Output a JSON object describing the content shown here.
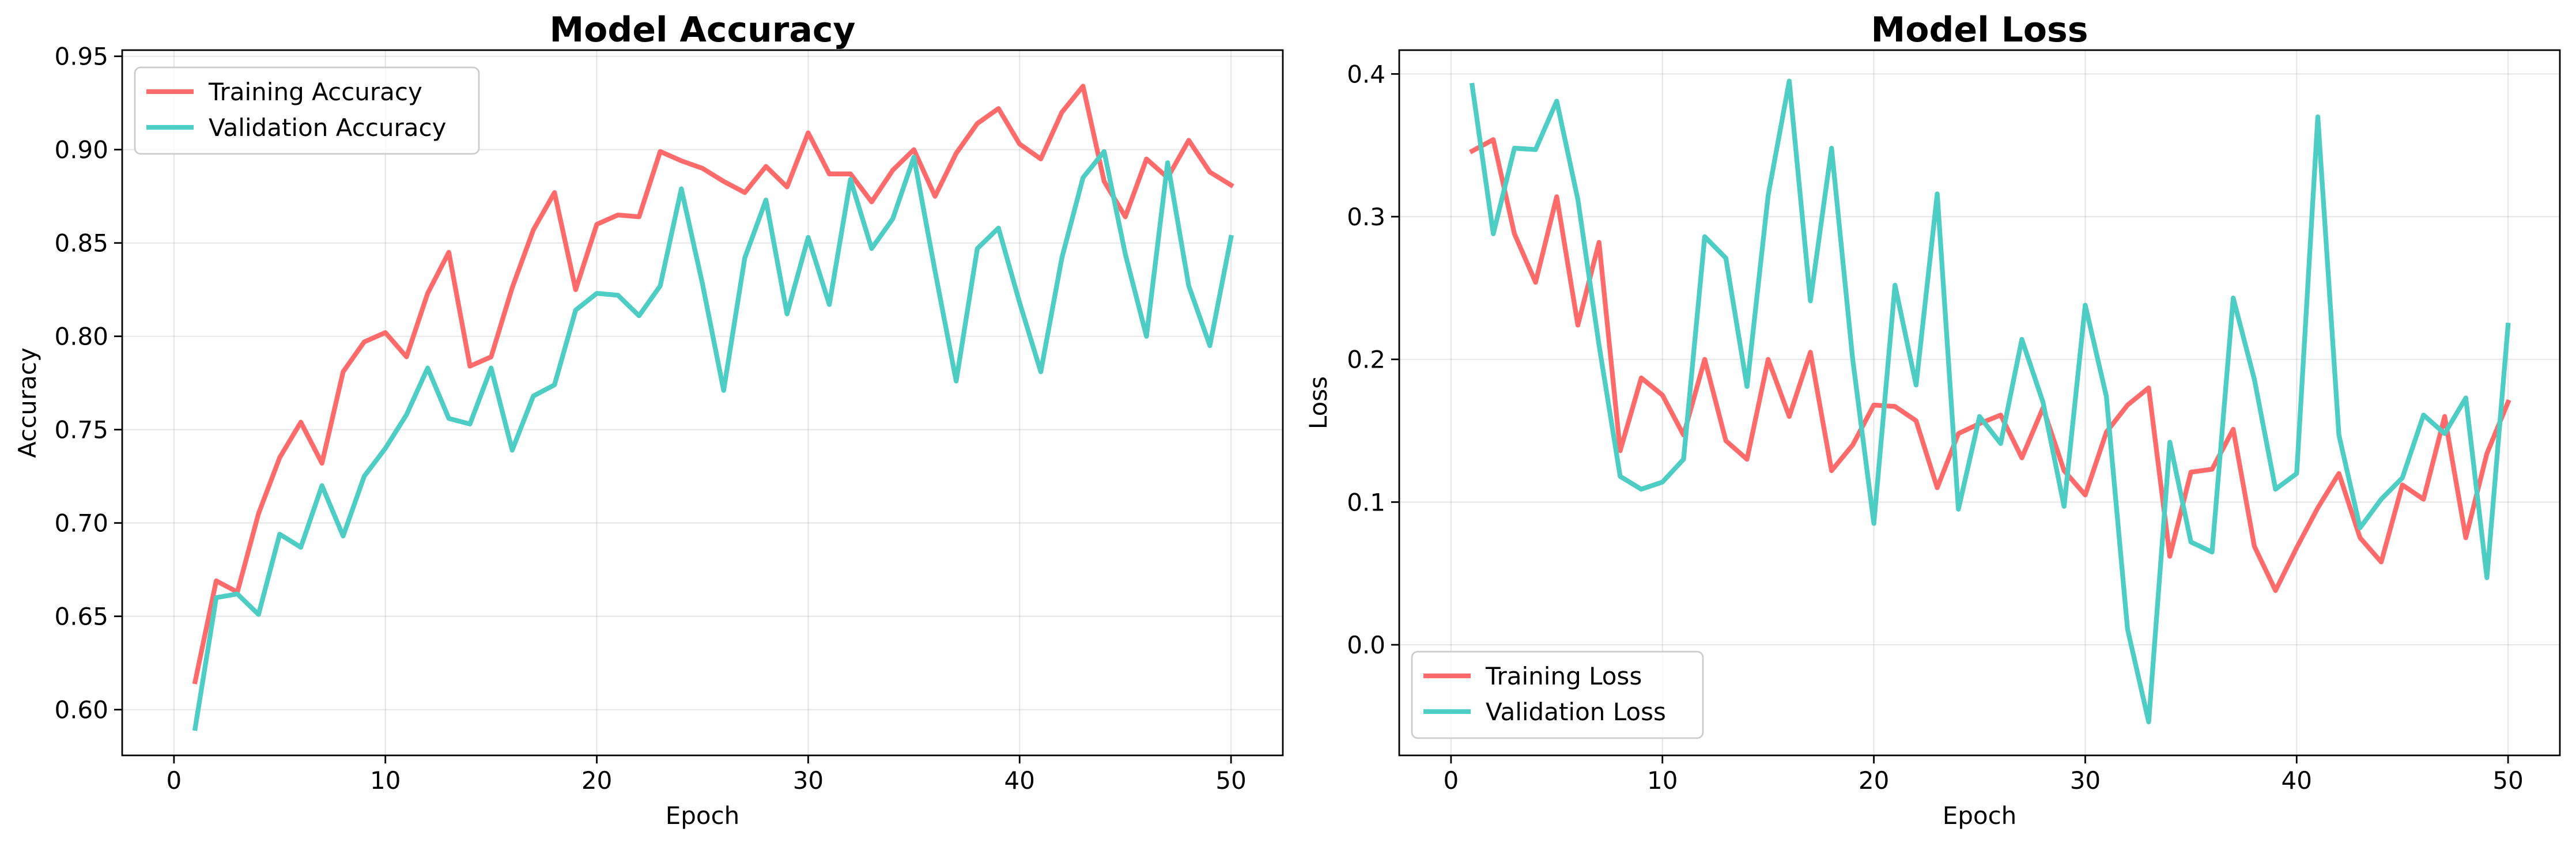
{
  "colors": {
    "training": "#ff6b6b",
    "validation": "#4ecdc4"
  },
  "chart_data": [
    {
      "type": "line",
      "title": "Model Accuracy",
      "xlabel": "Epoch",
      "ylabel": "Accuracy",
      "xlim": [
        -2.45,
        52.45
      ],
      "ylim": [
        0.5755,
        0.9533
      ],
      "xticks": [
        0,
        10,
        20,
        30,
        40,
        50
      ],
      "yticks": [
        0.6,
        0.65,
        0.7,
        0.75,
        0.8,
        0.85,
        0.9,
        0.95
      ],
      "xtick_labels": [
        "0",
        "10",
        "20",
        "30",
        "40",
        "50"
      ],
      "ytick_labels": [
        "0.60",
        "0.65",
        "0.70",
        "0.75",
        "0.80",
        "0.85",
        "0.90",
        "0.95"
      ],
      "grid": true,
      "legend_position": "upper-left",
      "x": [
        1,
        2,
        3,
        4,
        5,
        6,
        7,
        8,
        9,
        10,
        11,
        12,
        13,
        14,
        15,
        16,
        17,
        18,
        19,
        20,
        21,
        22,
        23,
        24,
        25,
        26,
        27,
        28,
        29,
        30,
        31,
        32,
        33,
        34,
        35,
        36,
        37,
        38,
        39,
        40,
        41,
        42,
        43,
        44,
        45,
        46,
        47,
        48,
        49,
        50
      ],
      "series": [
        {
          "name": "Training Accuracy",
          "color_key": "training",
          "values": [
            0.615,
            0.669,
            0.663,
            0.705,
            0.735,
            0.754,
            0.732,
            0.781,
            0.797,
            0.802,
            0.789,
            0.823,
            0.845,
            0.784,
            0.789,
            0.826,
            0.857,
            0.877,
            0.825,
            0.86,
            0.865,
            0.864,
            0.899,
            0.894,
            0.89,
            0.883,
            0.877,
            0.891,
            0.88,
            0.909,
            0.887,
            0.887,
            0.872,
            0.889,
            0.9,
            0.875,
            0.898,
            0.914,
            0.922,
            0.903,
            0.895,
            0.92,
            0.934,
            0.883,
            0.864,
            0.895,
            0.885,
            0.905,
            0.888,
            0.881
          ]
        },
        {
          "name": "Validation Accuracy",
          "color_key": "validation",
          "values": [
            0.59,
            0.66,
            0.662,
            0.651,
            0.694,
            0.687,
            0.72,
            0.693,
            0.725,
            0.74,
            0.758,
            0.783,
            0.756,
            0.753,
            0.783,
            0.739,
            0.768,
            0.774,
            0.814,
            0.823,
            0.822,
            0.811,
            0.827,
            0.879,
            0.828,
            0.771,
            0.842,
            0.873,
            0.812,
            0.853,
            0.817,
            0.884,
            0.847,
            0.863,
            0.896,
            0.835,
            0.776,
            0.847,
            0.858,
            0.818,
            0.781,
            0.842,
            0.885,
            0.899,
            0.844,
            0.8,
            0.893,
            0.827,
            0.795,
            0.853
          ]
        }
      ]
    },
    {
      "type": "line",
      "title": "Model Loss",
      "xlabel": "Epoch",
      "ylabel": "Loss",
      "xlim": [
        -2.45,
        52.45
      ],
      "ylim": [
        -0.0775,
        0.4167
      ],
      "xticks": [
        0,
        10,
        20,
        30,
        40,
        50
      ],
      "yticks": [
        0.0,
        0.1,
        0.2,
        0.3,
        0.4
      ],
      "xtick_labels": [
        "0",
        "10",
        "20",
        "30",
        "40",
        "50"
      ],
      "ytick_labels": [
        "0.0",
        "0.1",
        "0.2",
        "0.3",
        "0.4"
      ],
      "grid": true,
      "legend_position": "lower-left",
      "x": [
        1,
        2,
        3,
        4,
        5,
        6,
        7,
        8,
        9,
        10,
        11,
        12,
        13,
        14,
        15,
        16,
        17,
        18,
        19,
        20,
        21,
        22,
        23,
        24,
        25,
        26,
        27,
        28,
        29,
        30,
        31,
        32,
        33,
        34,
        35,
        36,
        37,
        38,
        39,
        40,
        41,
        42,
        43,
        44,
        45,
        46,
        47,
        48,
        49,
        50
      ],
      "series": [
        {
          "name": "Training Loss",
          "color_key": "training",
          "values": [
            0.346,
            0.354,
            0.288,
            0.254,
            0.314,
            0.224,
            0.282,
            0.136,
            0.187,
            0.175,
            0.147,
            0.2,
            0.143,
            0.13,
            0.2,
            0.16,
            0.205,
            0.122,
            0.14,
            0.168,
            0.167,
            0.157,
            0.11,
            0.148,
            0.155,
            0.161,
            0.131,
            0.166,
            0.122,
            0.105,
            0.149,
            0.168,
            0.18,
            0.062,
            0.121,
            0.123,
            0.151,
            0.069,
            0.038,
            0.068,
            0.096,
            0.12,
            0.075,
            0.058,
            0.112,
            0.102,
            0.16,
            0.075,
            0.134,
            0.17
          ]
        },
        {
          "name": "Validation Loss",
          "color_key": "validation",
          "values": [
            0.392,
            0.288,
            0.348,
            0.347,
            0.381,
            0.312,
            0.21,
            0.118,
            0.109,
            0.114,
            0.13,
            0.286,
            0.271,
            0.181,
            0.315,
            0.395,
            0.241,
            0.348,
            0.2,
            0.085,
            0.252,
            0.182,
            0.316,
            0.095,
            0.16,
            0.141,
            0.214,
            0.17,
            0.097,
            0.238,
            0.174,
            0.011,
            -0.054,
            0.142,
            0.072,
            0.065,
            0.243,
            0.186,
            0.109,
            0.12,
            0.37,
            0.147,
            0.082,
            0.102,
            0.117,
            0.161,
            0.148,
            0.173,
            0.047,
            0.224
          ]
        }
      ]
    }
  ]
}
